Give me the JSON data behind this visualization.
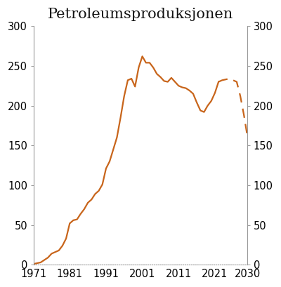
{
  "title": "Petroleumsproduksjonen",
  "line_color": "#C8651B",
  "solid_years": [
    1971,
    1972,
    1973,
    1974,
    1975,
    1976,
    1977,
    1978,
    1979,
    1980,
    1981,
    1982,
    1983,
    1984,
    1985,
    1986,
    1987,
    1988,
    1989,
    1990,
    1991,
    1992,
    1993,
    1994,
    1995,
    1996,
    1997,
    1998,
    1999,
    2000,
    2001,
    2002,
    2003,
    2004,
    2005,
    2006,
    2007,
    2008,
    2009,
    2010,
    2011,
    2012,
    2013,
    2014,
    2015,
    2016,
    2017,
    2018,
    2019,
    2020,
    2021,
    2022
  ],
  "solid_values": [
    1,
    2,
    3,
    6,
    9,
    14,
    16,
    18,
    24,
    33,
    52,
    56,
    57,
    64,
    70,
    78,
    82,
    89,
    93,
    101,
    121,
    130,
    145,
    160,
    185,
    212,
    232,
    234,
    224,
    248,
    262,
    254,
    254,
    248,
    240,
    236,
    231,
    230,
    235,
    230,
    225,
    223,
    222,
    219,
    215,
    204,
    194,
    192,
    200,
    206,
    216,
    230
  ],
  "dashed_years": [
    2022,
    2023,
    2024,
    2025,
    2026,
    2027,
    2028,
    2029,
    2030
  ],
  "dashed_values": [
    230,
    232,
    233,
    234,
    232,
    230,
    212,
    188,
    160
  ],
  "xlim": [
    1971,
    2030
  ],
  "ylim": [
    0,
    300
  ],
  "yticks": [
    0,
    50,
    100,
    150,
    200,
    250,
    300
  ],
  "xticks": [
    1971,
    1981,
    1991,
    2001,
    2011,
    2021,
    2030
  ],
  "background_color": "#ffffff",
  "spine_color": "#999999",
  "title_fontsize": 15,
  "tick_fontsize": 10.5,
  "figwidth": 4.0,
  "figheight": 4.09,
  "dpi": 100
}
